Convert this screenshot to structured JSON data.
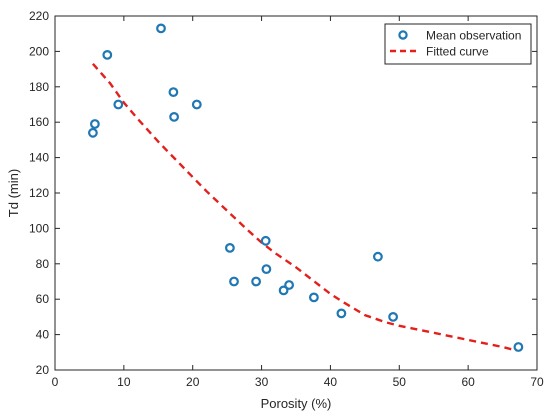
{
  "chart_data": {
    "type": "scatter",
    "xlabel": "Porosity (%)",
    "ylabel": "Td (min)",
    "xlim": [
      0,
      70
    ],
    "ylim": [
      20,
      220
    ],
    "xticks": [
      0,
      10,
      20,
      30,
      40,
      50,
      60,
      70
    ],
    "yticks": [
      20,
      40,
      60,
      80,
      100,
      120,
      140,
      160,
      180,
      200,
      220
    ],
    "grid": false,
    "legend_position": "top-right",
    "series": [
      {
        "name": "Mean observation",
        "kind": "scatter",
        "color": "#1f77b4",
        "x": [
          5.5,
          5.8,
          7.6,
          9.2,
          15.4,
          17.2,
          17.3,
          20.6,
          25.4,
          26.0,
          29.2,
          30.6,
          30.7,
          33.2,
          34.0,
          37.6,
          41.6,
          46.9,
          49.1,
          67.3
        ],
        "y": [
          154,
          159,
          198,
          170,
          213,
          177,
          163,
          170,
          89,
          70,
          70,
          93,
          77,
          65,
          68,
          61,
          52,
          84,
          50,
          33
        ]
      },
      {
        "name": "Fitted curve",
        "kind": "line",
        "style": "dashed",
        "color": "#e3201b",
        "x": [
          5.5,
          8,
          10,
          12,
          15,
          18,
          20,
          22,
          25,
          28,
          30,
          32,
          35,
          38,
          40,
          42,
          45,
          48,
          50,
          55,
          60,
          65,
          67
        ],
        "y": [
          193,
          182,
          171,
          162,
          149,
          137,
          129,
          121,
          110,
          99,
          92,
          86,
          78,
          69,
          63,
          58,
          51,
          47,
          45,
          41,
          37,
          33,
          31
        ]
      }
    ]
  }
}
